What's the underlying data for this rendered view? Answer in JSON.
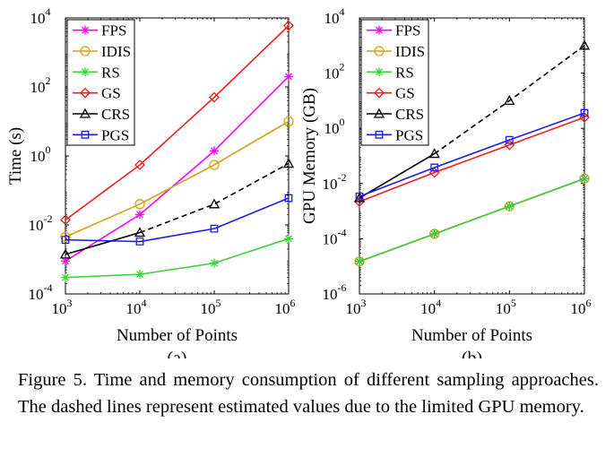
{
  "chart_data": [
    {
      "type": "line",
      "panel_label": "(a)",
      "title": "",
      "xlabel": "Number of Points",
      "ylabel": "Time (s)",
      "x": [
        1000,
        10000,
        100000,
        1000000
      ],
      "xscale": "log",
      "yscale": "log",
      "xlim": [
        1000,
        1000000
      ],
      "ylim": [
        0.0001,
        10000
      ],
      "x_ticks": [
        {
          "base": "10",
          "exp": "3"
        },
        {
          "base": "10",
          "exp": "4"
        },
        {
          "base": "10",
          "exp": "5"
        },
        {
          "base": "10",
          "exp": "6"
        }
      ],
      "y_ticks": [
        {
          "value": 0.0001,
          "base": "10",
          "exp": "-4"
        },
        {
          "value": 0.01,
          "base": "10",
          "exp": "-2"
        },
        {
          "value": 1,
          "base": "10",
          "exp": "0"
        },
        {
          "value": 100,
          "base": "10",
          "exp": "2"
        },
        {
          "value": 10000,
          "base": "10",
          "exp": "4"
        }
      ],
      "legend_position": "top-left",
      "series": [
        {
          "name": "FPS",
          "color": "#ff00ff",
          "marker": "star",
          "values": [
            0.0009,
            0.02,
            1.4,
            200
          ],
          "dashed_from": null
        },
        {
          "name": "IDIS",
          "color": "#d4a017",
          "marker": "circle",
          "values": [
            0.0045,
            0.04,
            0.55,
            10
          ],
          "dashed_from": null
        },
        {
          "name": "RS",
          "color": "#3ad13a",
          "marker": "star",
          "values": [
            0.0003,
            0.00037,
            0.00078,
            0.004
          ],
          "dashed_from": null
        },
        {
          "name": "GS",
          "color": "#ee1c1c",
          "marker": "diamond",
          "values": [
            0.014,
            0.55,
            50,
            6000
          ],
          "dashed_from": null
        },
        {
          "name": "CRS",
          "color": "#000000",
          "marker": "triangle",
          "values": [
            0.0014,
            0.006,
            0.04,
            0.6
          ],
          "dashed_from": 1
        },
        {
          "name": "PGS",
          "color": "#1c1cee",
          "marker": "square",
          "values": [
            0.0037,
            0.0033,
            0.0078,
            0.06
          ],
          "dashed_from": null
        }
      ]
    },
    {
      "type": "line",
      "panel_label": "(b)",
      "title": "",
      "xlabel": "Number of Points",
      "ylabel": "GPU Memory (GB)",
      "x": [
        1000,
        10000,
        100000,
        1000000
      ],
      "xscale": "log",
      "yscale": "log",
      "xlim": [
        1000,
        1000000
      ],
      "ylim": [
        1e-06,
        10000
      ],
      "x_ticks": [
        {
          "base": "10",
          "exp": "3"
        },
        {
          "base": "10",
          "exp": "4"
        },
        {
          "base": "10",
          "exp": "5"
        },
        {
          "base": "10",
          "exp": "6"
        }
      ],
      "y_ticks": [
        {
          "value": 1e-06,
          "base": "10",
          "exp": "-6"
        },
        {
          "value": 0.0001,
          "base": "10",
          "exp": "-4"
        },
        {
          "value": 0.01,
          "base": "10",
          "exp": "-2"
        },
        {
          "value": 1,
          "base": "10",
          "exp": "0"
        },
        {
          "value": 100,
          "base": "10",
          "exp": "2"
        },
        {
          "value": 10000,
          "base": "10",
          "exp": "4"
        }
      ],
      "legend_position": "top-left",
      "series": [
        {
          "name": "FPS",
          "color": "#ff00ff",
          "marker": "star",
          "values": [
            1.5e-05,
            0.00015,
            0.0015,
            0.015
          ],
          "dashed_from": null
        },
        {
          "name": "IDIS",
          "color": "#d4a017",
          "marker": "circle",
          "values": [
            1.5e-05,
            0.00015,
            0.0015,
            0.015
          ],
          "dashed_from": null
        },
        {
          "name": "RS",
          "color": "#3ad13a",
          "marker": "star",
          "values": [
            1.5e-05,
            0.00015,
            0.0015,
            0.015
          ],
          "dashed_from": null
        },
        {
          "name": "GS",
          "color": "#ee1c1c",
          "marker": "diamond",
          "values": [
            0.0022,
            0.025,
            0.25,
            2.5
          ],
          "dashed_from": null
        },
        {
          "name": "CRS",
          "color": "#000000",
          "marker": "triangle",
          "values": [
            0.003,
            0.12,
            10,
            1000
          ],
          "dashed_from": 1
        },
        {
          "name": "PGS",
          "color": "#1c1cee",
          "marker": "square",
          "values": [
            0.0034,
            0.038,
            0.38,
            3.6
          ],
          "dashed_from": null
        }
      ]
    }
  ],
  "caption": {
    "label": "Figure 5.",
    "text": "Time and memory consumption of different sampling approaches. The dashed lines represent estimated values due to the limited GPU memory."
  }
}
